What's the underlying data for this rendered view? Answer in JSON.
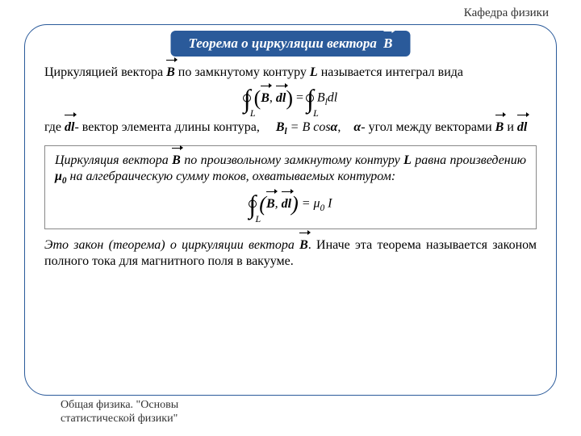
{
  "header": "Кафедра физики",
  "title": {
    "text": "Теорема о циркуляции вектора",
    "symbol": "B"
  },
  "p1": {
    "a": "Циркуляцией вектора ",
    "sym1": "B",
    "b": " по замкнутому контуру ",
    "sym2": "L",
    "c": " называется интеграл вида"
  },
  "formula1": {
    "inner1": "B",
    "inner2": "dl",
    "rhs_sym": "B",
    "rhs_sub": "l",
    "rhs_dl": "dl"
  },
  "p2": {
    "a": "где ",
    "sym1": "dl",
    "b": "- вектор элемента длины контура,",
    "eq_lhs": "B",
    "eq_sub": "l",
    "eq_mid": " = B cos",
    "eq_alpha": "α",
    "eq_comma": ",",
    "alpha2": "α",
    "c": "- угол между векторами ",
    "sym2": "B",
    "and": " и ",
    "sym3": "dl"
  },
  "theorem": {
    "a": "Циркуляция вектора ",
    "sym1": "B",
    "b": " по произвольному замкнутому контуру ",
    "sym2": "L",
    "c": " равна произведению ",
    "mu0": "μ",
    "mu0sub": "0",
    "d": " на алгебраическую сумму токов, охватываемых контуром:"
  },
  "formula2": {
    "inner1": "B",
    "inner2": "dl",
    "mu": "μ",
    "mu_sub": "0",
    "I": "I"
  },
  "p3": {
    "a": "Это закон (теорема) о циркуляции вектора ",
    "sym1": "B",
    "b": ". Иначе эта теорема называется законом полного тока для  магнитного  поля в вакууме."
  },
  "footer": {
    "l1": "Общая физика. \"Основы",
    "l2": "статистической физики\""
  },
  "colors": {
    "accent": "#2a5a9a",
    "text": "#000000"
  }
}
